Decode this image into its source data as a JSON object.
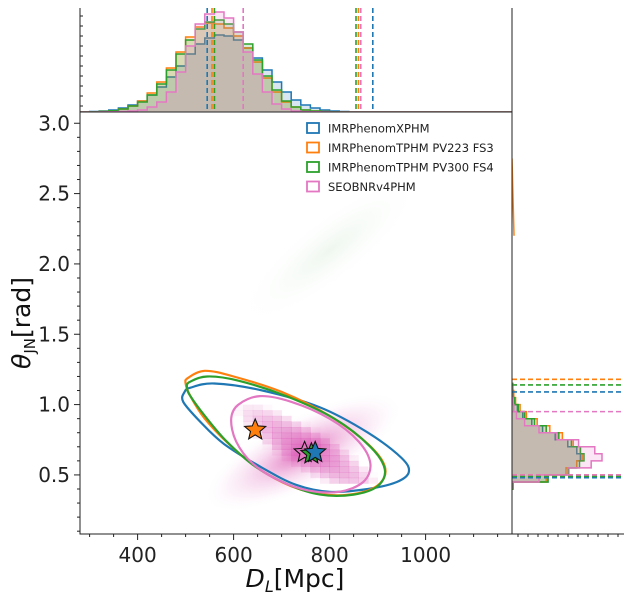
{
  "chart_data": {
    "type": "scatter",
    "subtype": "corner-contour-with-marginal-histograms",
    "xlabel_main": "D",
    "xlabel_sub": "L",
    "xlabel_unit": "[Mpc]",
    "ylabel_main": "θ",
    "ylabel_sub": "JN",
    "ylabel_unit": "[rad]",
    "xlim": [
      280,
      1180
    ],
    "ylim": [
      0.08,
      3.08
    ],
    "xticks": [
      400,
      600,
      800,
      1000
    ],
    "xtick_labels": [
      "400",
      "600",
      "800",
      "1000"
    ],
    "yticks": [
      0.5,
      1.0,
      1.5,
      2.0,
      2.5,
      3.0
    ],
    "ytick_labels": [
      "0.5",
      "1.0",
      "1.5",
      "2.0",
      "2.5",
      "3.0"
    ],
    "legend_position": "top-right",
    "series": [
      {
        "name": "IMRPhenomXPHM",
        "color": "#1f77b4",
        "median": [
          770,
          0.66
        ],
        "dl_bounds": [
          545,
          890
        ],
        "theta_bounds": [
          0.48,
          1.09
        ],
        "contour": [
          [
            510,
            1.12
          ],
          [
            560,
            1.15
          ],
          [
            660,
            1.1
          ],
          [
            780,
            0.98
          ],
          [
            880,
            0.8
          ],
          [
            950,
            0.62
          ],
          [
            965,
            0.52
          ],
          [
            940,
            0.45
          ],
          [
            880,
            0.4
          ],
          [
            800,
            0.38
          ],
          [
            730,
            0.43
          ],
          [
            660,
            0.55
          ],
          [
            580,
            0.72
          ],
          [
            530,
            0.88
          ],
          [
            495,
            1.02
          ],
          [
            498,
            1.09
          ]
        ]
      },
      {
        "name": "IMRPhenomTPHM PV223 FS3",
        "color": "#ff7f0e",
        "median": [
          645,
          0.82
        ],
        "dl_bounds": [
          555,
          860
        ],
        "theta_bounds": [
          0.5,
          1.18
        ],
        "contour": [
          [
            505,
            1.19
          ],
          [
            540,
            1.24
          ],
          [
            600,
            1.2
          ],
          [
            700,
            1.09
          ],
          [
            800,
            0.92
          ],
          [
            880,
            0.72
          ],
          [
            915,
            0.56
          ],
          [
            905,
            0.44
          ],
          [
            860,
            0.37
          ],
          [
            790,
            0.36
          ],
          [
            720,
            0.42
          ],
          [
            650,
            0.55
          ],
          [
            590,
            0.72
          ],
          [
            540,
            0.9
          ],
          [
            510,
            1.06
          ],
          [
            500,
            1.15
          ]
        ]
      },
      {
        "name": "IMRPhenomTPHM PV300 FS4",
        "color": "#2ca02c",
        "median": [
          762,
          0.65
        ],
        "dl_bounds": [
          560,
          855
        ],
        "theta_bounds": [
          0.49,
          1.14
        ],
        "contour": [
          [
            508,
            1.16
          ],
          [
            545,
            1.2
          ],
          [
            610,
            1.17
          ],
          [
            710,
            1.06
          ],
          [
            810,
            0.9
          ],
          [
            885,
            0.7
          ],
          [
            915,
            0.54
          ],
          [
            900,
            0.42
          ],
          [
            850,
            0.36
          ],
          [
            780,
            0.36
          ],
          [
            715,
            0.43
          ],
          [
            645,
            0.56
          ],
          [
            585,
            0.74
          ],
          [
            540,
            0.92
          ],
          [
            510,
            1.06
          ],
          [
            503,
            1.12
          ]
        ]
      },
      {
        "name": "SEOBNRv4PHM",
        "color": "#e377c2",
        "median": [
          748,
          0.66
        ],
        "dl_bounds": [
          620,
          865
        ],
        "theta_bounds": [
          0.5,
          0.95
        ],
        "contour": [
          [
            610,
            1.0
          ],
          [
            655,
            1.06
          ],
          [
            720,
            1.02
          ],
          [
            800,
            0.9
          ],
          [
            860,
            0.74
          ],
          [
            885,
            0.58
          ],
          [
            870,
            0.45
          ],
          [
            820,
            0.38
          ],
          [
            755,
            0.39
          ],
          [
            695,
            0.46
          ],
          [
            640,
            0.58
          ],
          [
            605,
            0.74
          ],
          [
            595,
            0.9
          ]
        ]
      }
    ],
    "dl_histogram": {
      "bin_edges_start": 300,
      "bin_width": 20,
      "densities": [
        {
          "name": "IMRPhenomXPHM",
          "values": [
            0.005,
            0.01,
            0.02,
            0.04,
            0.07,
            0.11,
            0.17,
            0.25,
            0.35,
            0.46,
            0.58,
            0.68,
            0.74,
            0.77,
            0.76,
            0.72,
            0.64,
            0.54,
            0.42,
            0.3,
            0.2,
            0.12,
            0.07,
            0.04,
            0.02,
            0.01,
            0.005
          ]
        },
        {
          "name": "IMRPhenomTPHM PV223 FS3",
          "values": [
            0.003,
            0.006,
            0.012,
            0.03,
            0.06,
            0.11,
            0.19,
            0.3,
            0.44,
            0.6,
            0.75,
            0.85,
            0.89,
            0.88,
            0.84,
            0.76,
            0.64,
            0.5,
            0.34,
            0.2,
            0.1,
            0.05,
            0.02,
            0.01,
            0.005,
            0.002,
            0.001
          ]
        },
        {
          "name": "IMRPhenomTPHM PV300 FS4",
          "values": [
            0.003,
            0.006,
            0.012,
            0.03,
            0.06,
            0.1,
            0.17,
            0.28,
            0.42,
            0.58,
            0.72,
            0.83,
            0.9,
            0.92,
            0.88,
            0.8,
            0.68,
            0.52,
            0.36,
            0.22,
            0.11,
            0.05,
            0.02,
            0.01,
            0.005,
            0.002,
            0.001
          ]
        },
        {
          "name": "SEOBNRv4PHM",
          "values": [
            0.0,
            0.001,
            0.002,
            0.005,
            0.01,
            0.02,
            0.05,
            0.1,
            0.2,
            0.4,
            0.66,
            0.88,
            0.98,
            1.0,
            0.94,
            0.8,
            0.6,
            0.38,
            0.2,
            0.08,
            0.03,
            0.01,
            0.004,
            0.002,
            0.001,
            0.0,
            0.0
          ]
        }
      ]
    },
    "theta_histogram": {
      "bin_edges_start": 0.4,
      "bin_width": 0.05,
      "densities": [
        {
          "name": "IMRPhenomXPHM",
          "values": [
            0.01,
            0.4,
            0.62,
            0.72,
            0.76,
            0.72,
            0.62,
            0.48,
            0.34,
            0.22,
            0.12,
            0.06,
            0.03,
            0.01,
            0.005
          ]
        },
        {
          "name": "IMRPhenomTPHM PV223 FS3",
          "values": [
            0.01,
            0.38,
            0.6,
            0.72,
            0.78,
            0.76,
            0.68,
            0.56,
            0.42,
            0.28,
            0.16,
            0.09,
            0.04,
            0.02,
            0.01
          ]
        },
        {
          "name": "IMRPhenomTPHM PV300 FS4",
          "values": [
            0.01,
            0.4,
            0.63,
            0.75,
            0.8,
            0.76,
            0.66,
            0.52,
            0.38,
            0.25,
            0.14,
            0.07,
            0.03,
            0.01,
            0.005
          ]
        },
        {
          "name": "SEOBNRv4PHM",
          "values": [
            0.0,
            0.3,
            0.62,
            0.88,
            1.0,
            0.92,
            0.74,
            0.5,
            0.3,
            0.14,
            0.05,
            0.02,
            0.01,
            0.0,
            0.0
          ]
        }
      ]
    }
  }
}
